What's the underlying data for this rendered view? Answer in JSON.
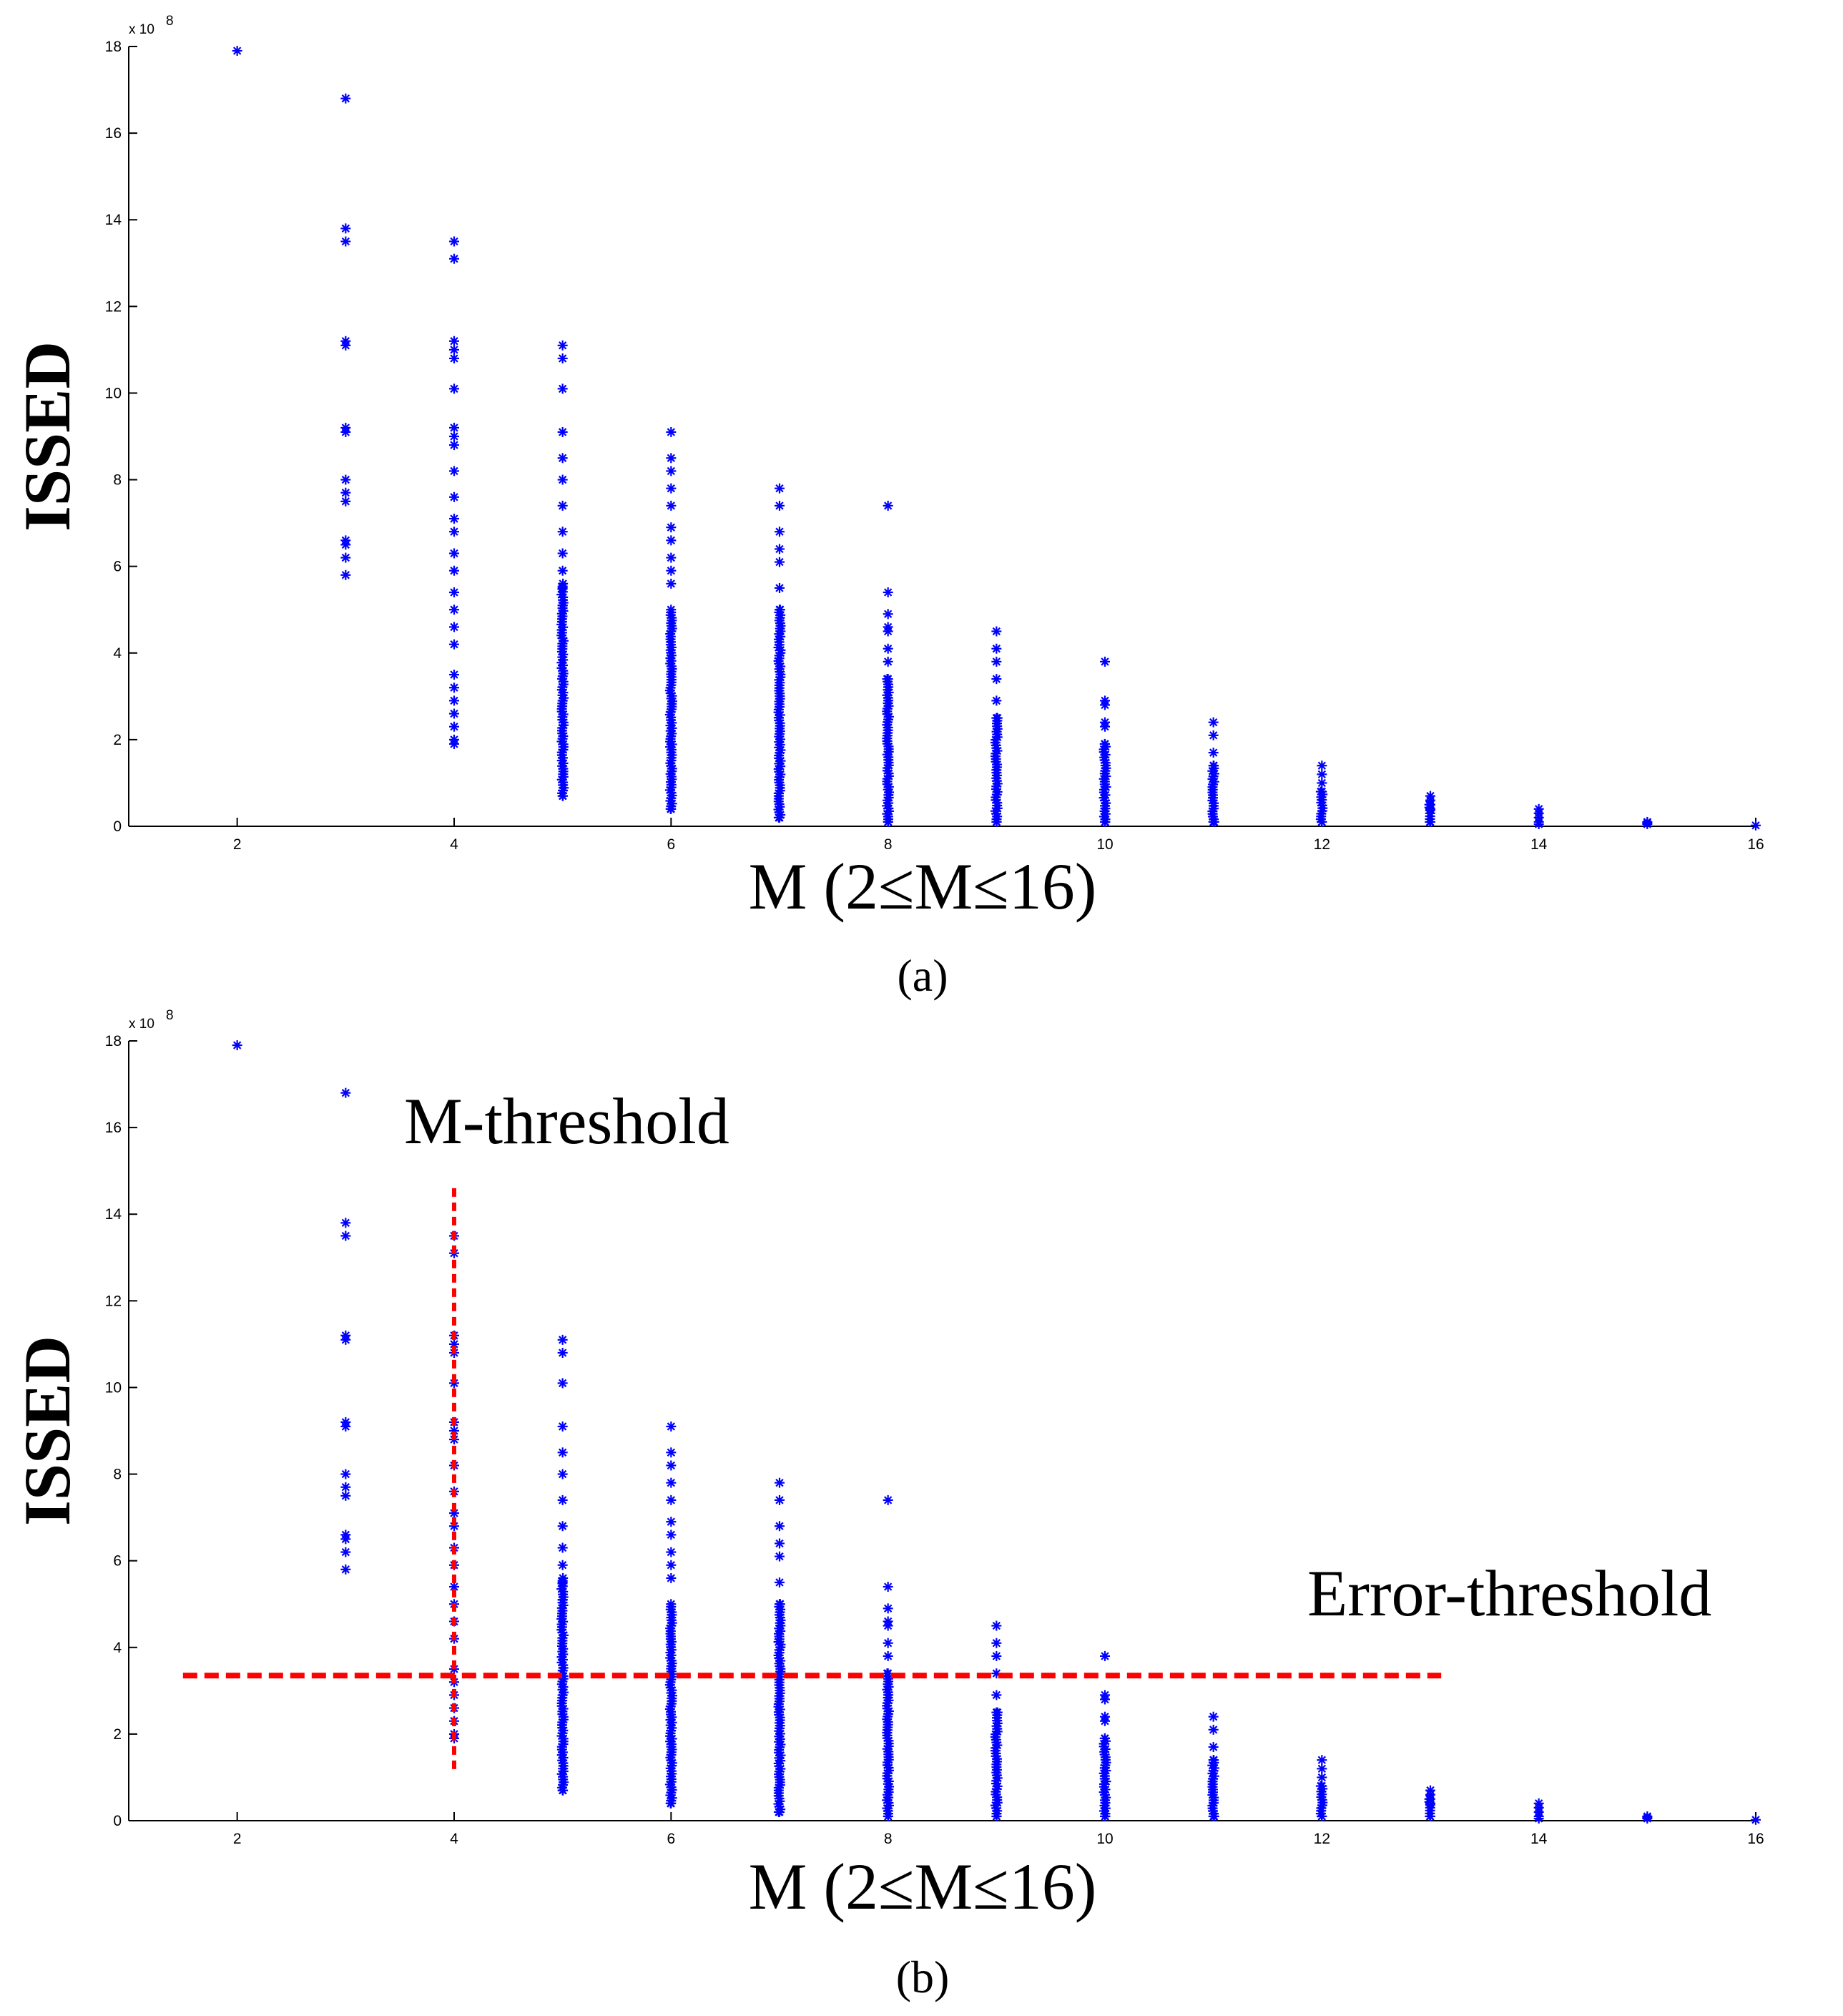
{
  "chart_data": [
    {
      "type": "scatter",
      "panel_label": "(a)",
      "xlabel": "M (2≤M≤16)",
      "ylabel": "ISSED",
      "y_exponent_label": "x 10",
      "y_exponent_power": "8",
      "xlim": [
        1,
        16
      ],
      "ylim": [
        0,
        18
      ],
      "xticks": [
        "2",
        "4",
        "6",
        "8",
        "10",
        "12",
        "14",
        "16"
      ],
      "yticks": [
        "0",
        "2",
        "4",
        "6",
        "8",
        "10",
        "12",
        "14",
        "16",
        "18"
      ],
      "series_color": "#0000ff",
      "marker": "asterisk",
      "points_by_M": [
        {
          "M": 2,
          "values": [
            17.9
          ]
        },
        {
          "M": 3,
          "values": [
            16.8,
            13.8,
            13.5,
            11.2,
            11.1,
            9.2,
            9.1,
            8.0,
            7.7,
            7.5,
            6.6,
            6.5,
            6.2,
            5.8
          ]
        },
        {
          "M": 4,
          "values": [
            13.5,
            13.1,
            11.2,
            11.0,
            10.8,
            10.1,
            9.2,
            9.0,
            8.8,
            8.2,
            7.6,
            7.1,
            6.8,
            6.3,
            5.9,
            5.4,
            5.0,
            4.6,
            4.2,
            3.5,
            3.2,
            2.9,
            2.6,
            2.3,
            2.0,
            1.9
          ]
        },
        {
          "M": 5,
          "values": [
            11.1,
            10.8,
            10.1,
            9.1,
            8.5,
            8.0,
            7.4,
            6.8,
            6.3,
            5.9,
            5.5,
            5.1,
            0.7
          ],
          "dense_range": [
            0.7,
            5.6
          ]
        },
        {
          "M": 6,
          "values": [
            9.1,
            8.5,
            8.2,
            7.8,
            7.4,
            6.9,
            6.6,
            6.2,
            5.9,
            5.6,
            0.4
          ],
          "dense_range": [
            0.4,
            5.0
          ]
        },
        {
          "M": 7,
          "values": [
            7.8,
            7.4,
            6.8,
            6.4,
            6.1,
            5.5,
            5.0,
            0.2
          ],
          "dense_range": [
            0.2,
            5.0
          ]
        },
        {
          "M": 8,
          "values": [
            7.4,
            5.4,
            4.9,
            4.6,
            4.5,
            4.1,
            3.8,
            3.4,
            0.1
          ],
          "dense_range": [
            0.1,
            3.4
          ]
        },
        {
          "M": 9,
          "values": [
            4.5,
            4.1,
            3.8,
            3.4,
            2.9,
            2.5,
            0.1
          ],
          "dense_range": [
            0.1,
            2.5
          ]
        },
        {
          "M": 10,
          "values": [
            3.8,
            2.9,
            2.8,
            2.4,
            2.3,
            1.9,
            0.1
          ],
          "dense_range": [
            0.1,
            1.9
          ]
        },
        {
          "M": 11,
          "values": [
            2.4,
            2.1,
            1.7,
            1.4,
            0.1
          ],
          "dense_range": [
            0.1,
            1.4
          ]
        },
        {
          "M": 12,
          "values": [
            1.4,
            1.2,
            1.0,
            0.8,
            0.1
          ],
          "dense_range": [
            0.1,
            0.8
          ]
        },
        {
          "M": 13,
          "values": [
            0.7,
            0.6,
            0.5,
            0.4,
            0.1
          ],
          "dense_range": [
            0.1,
            0.5
          ]
        },
        {
          "M": 14,
          "values": [
            0.4,
            0.3,
            0.2,
            0.1,
            0.05
          ]
        },
        {
          "M": 15,
          "values": [
            0.1,
            0.08,
            0.05
          ]
        },
        {
          "M": 16,
          "values": [
            0.02
          ]
        }
      ]
    },
    {
      "type": "scatter",
      "panel_label": "(b)",
      "xlabel": "M (2≤M≤16)",
      "ylabel": "ISSED",
      "y_exponent_label": "x 10",
      "y_exponent_power": "8",
      "xlim": [
        1,
        16
      ],
      "ylim": [
        0,
        18
      ],
      "xticks": [
        "2",
        "4",
        "6",
        "8",
        "10",
        "12",
        "14",
        "16"
      ],
      "yticks": [
        "0",
        "2",
        "4",
        "6",
        "8",
        "10",
        "12",
        "14",
        "16",
        "18"
      ],
      "series_color": "#0000ff",
      "marker": "asterisk",
      "same_points_as_panel": "(a)",
      "annotations": [
        {
          "text": "M-threshold",
          "kind": "vertical-dashed-line",
          "x": 4,
          "y_range": [
            1.1,
            14.6
          ],
          "color": "#ff0000"
        },
        {
          "text": "Error-threshold",
          "kind": "horizontal-dashed-line",
          "y": 3.35,
          "x_range": [
            1.5,
            13.1
          ],
          "color": "#ff0000"
        }
      ]
    }
  ]
}
